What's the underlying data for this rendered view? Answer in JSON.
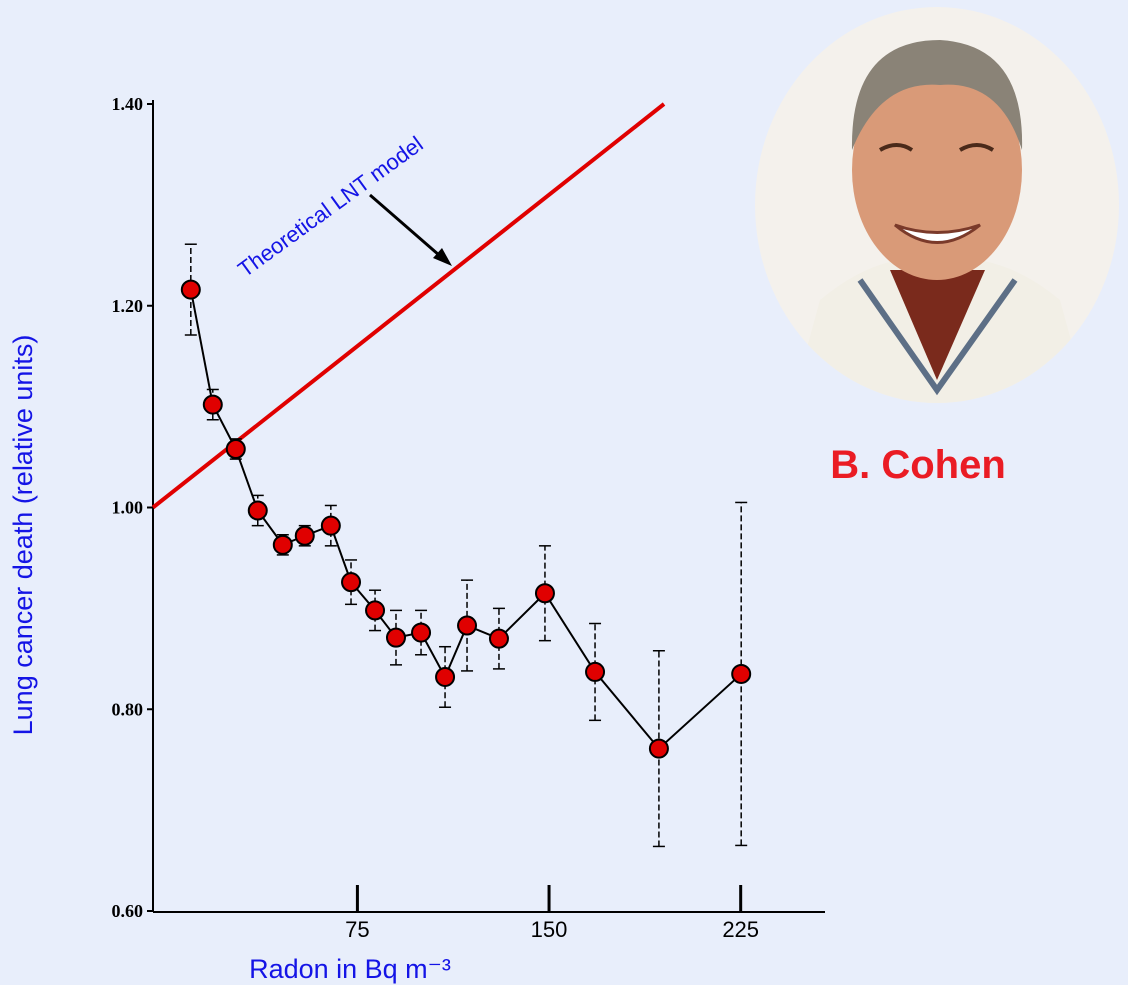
{
  "chart_data": {
    "type": "line",
    "x_label": "Radon in Bq m⁻³",
    "y_label": "Lung cancer death (relative units)",
    "annotation": "Theoretical LNT model",
    "caption": "B. Cohen",
    "xlim": [
      -5,
      258
    ],
    "ylim": [
      0.6,
      1.4
    ],
    "xticks": [
      75,
      150,
      225
    ],
    "yticks": [
      {
        "value": 0.6,
        "label": "0.60"
      },
      {
        "value": 0.8,
        "label": "0.80"
      },
      {
        "value": 1.0,
        "label": "1.00"
      },
      {
        "value": 1.2,
        "label": "1.20"
      },
      {
        "value": 1.4,
        "label": "1.40"
      }
    ],
    "series": [
      {
        "color": "#e00000",
        "x": [
          9.8,
          18.4,
          27.4,
          36,
          45.8,
          54.4,
          64.6,
          72.5,
          81.9,
          90.1,
          99.9,
          109.3,
          117.9,
          130.4,
          148.4,
          168,
          193,
          225.2
        ],
        "values": [
          1.216,
          1.102,
          1.058,
          0.997,
          0.963,
          0.972,
          0.982,
          0.926,
          0.898,
          0.871,
          0.876,
          0.832,
          0.883,
          0.87,
          0.915,
          0.837,
          0.761,
          0.835
        ],
        "errors": [
          0.045,
          0.015,
          0.01,
          0.015,
          0.01,
          0.01,
          0.02,
          0.022,
          0.02,
          0.027,
          0.022,
          0.03,
          0.045,
          0.03,
          0.047,
          0.048,
          0.097,
          0.17
        ]
      },
      {
        "color": "#e00000",
        "x": [
          -5,
          195
        ],
        "values": [
          1.0,
          1.4
        ]
      }
    ]
  }
}
